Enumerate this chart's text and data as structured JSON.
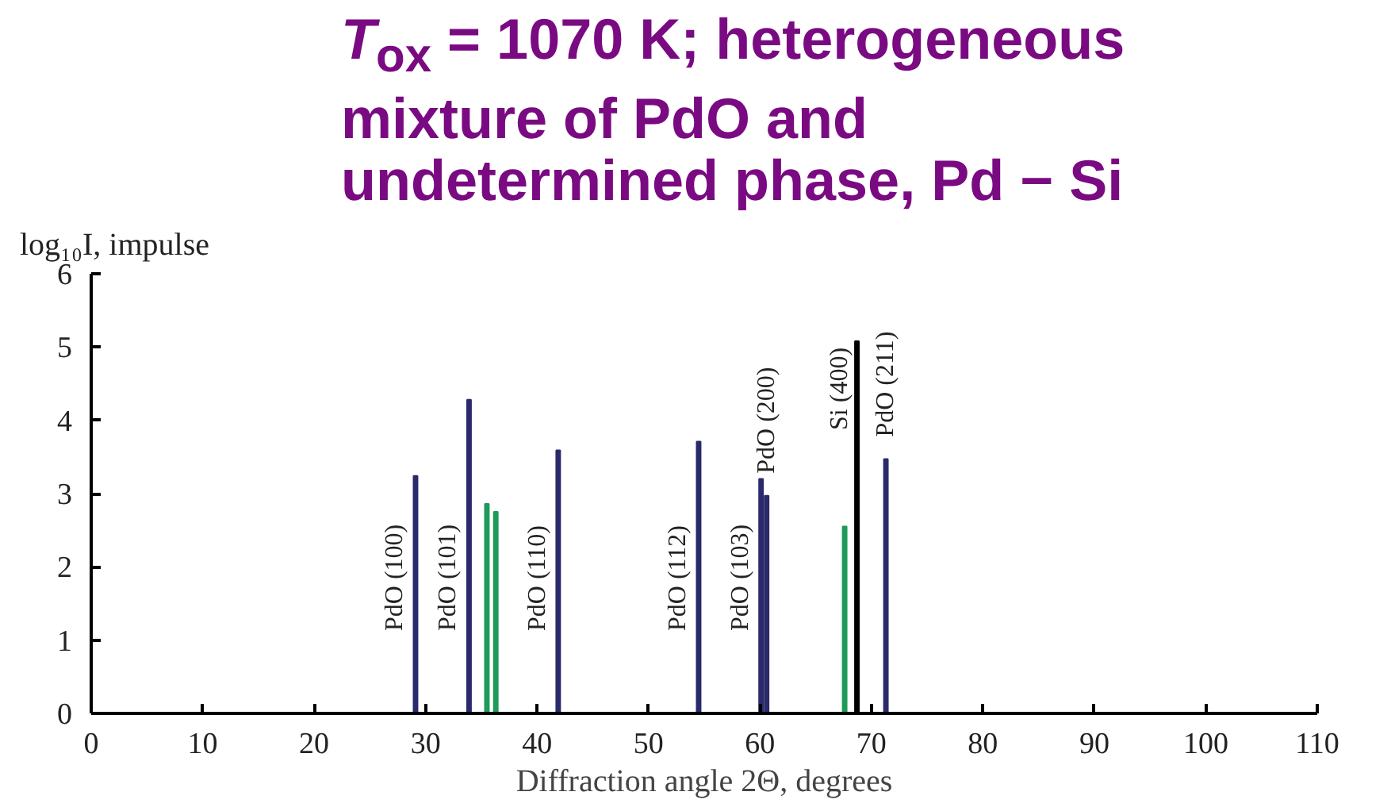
{
  "chart_data": {
    "type": "bar",
    "title": "T$_{ox}$ = 1070 K; heterogeneous\nmixture of PdO and\nundetermined phase, Pd − Si",
    "xlabel": "Diffraction angle 2Θ, degrees",
    "ylabel": "log₁₀I, impulse",
    "series": [
      {
        "color": "#2b2a6b",
        "x": [
          29.1,
          33.9,
          41.9,
          54.5,
          60.1,
          60.6,
          71.3
        ],
        "values": [
          3.24,
          4.28,
          3.59,
          3.71,
          3.2,
          2.97,
          3.47
        ]
      },
      {
        "color": "#1e9a5a",
        "x": [
          35.5,
          36.3,
          67.6
        ],
        "values": [
          2.86,
          2.75,
          2.55
        ]
      },
      {
        "color": "#000000",
        "x": [
          68.7
        ],
        "values": [
          5.08
        ]
      }
    ],
    "annotations": [
      "PdO (100)",
      "PdO (101)",
      "PdO (110)",
      "PdO (112)",
      "PdO (103)",
      "PdO (200)",
      "Si (400)",
      "PdO (211)"
    ],
    "xlim": [
      0,
      110
    ],
    "ylim": [
      0,
      6
    ],
    "xticks": [
      0,
      10,
      20,
      30,
      40,
      50,
      60,
      70,
      80,
      90,
      100,
      110
    ],
    "yticks": [
      0,
      1,
      2,
      3,
      4,
      5,
      6
    ],
    "grid": false
  }
}
